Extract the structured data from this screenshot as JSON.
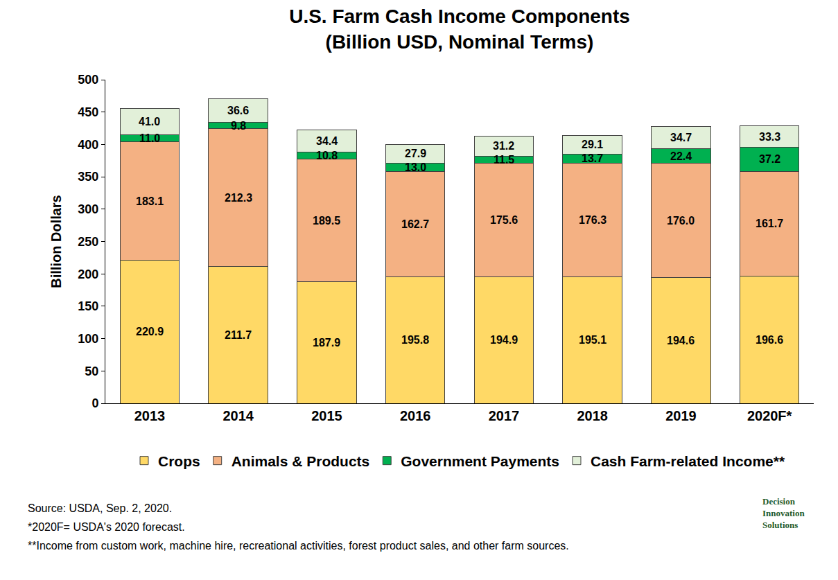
{
  "chart_data": {
    "type": "bar",
    "title": "U.S. Farm Cash Income Components",
    "subtitle": "(Billion USD, Nominal Terms)",
    "y_label": "Billion Dollars",
    "categories": [
      "2013",
      "2014",
      "2015",
      "2016",
      "2017",
      "2018",
      "2019",
      "2020F*"
    ],
    "series": [
      {
        "name": "Crops",
        "color": "#ffd966",
        "values": [
          220.9,
          211.7,
          187.9,
          195.8,
          194.9,
          195.1,
          194.6,
          196.6
        ],
        "value_labels": [
          "220.9",
          "211.7",
          "187.9",
          "195.8",
          "194.9",
          "195.1",
          "194.6",
          "196.6"
        ]
      },
      {
        "name": "Animals & Products",
        "color": "#f4b183",
        "values": [
          183.1,
          212.3,
          189.5,
          162.7,
          175.6,
          176.3,
          176.0,
          161.7
        ],
        "value_labels": [
          "183.1",
          "212.3",
          "189.5",
          "162.7",
          "175.6",
          "176.3",
          "176.0",
          "161.7"
        ]
      },
      {
        "name": "Government Payments",
        "color": "#00b050",
        "values": [
          11.0,
          9.8,
          10.8,
          13.0,
          11.5,
          13.7,
          22.4,
          37.2
        ],
        "value_labels": [
          "11.0",
          "9.8",
          "10.8",
          "13.0",
          "11.5",
          "13.7",
          "22.4",
          "37.2"
        ]
      },
      {
        "name": "Cash Farm-related Income**",
        "color": "#e2f0d9",
        "values": [
          41.0,
          36.6,
          34.4,
          27.9,
          31.2,
          29.1,
          34.7,
          33.3
        ],
        "value_labels": [
          "41.0",
          "36.6",
          "34.4",
          "27.9",
          "31.2",
          "29.1",
          "34.7",
          "33.3"
        ]
      }
    ],
    "ylim": [
      0,
      500
    ],
    "yticks": [
      0,
      50,
      100,
      150,
      200,
      250,
      300,
      350,
      400,
      450,
      500
    ],
    "grid": false,
    "stacked": true,
    "data_labels": true,
    "legend": "bottom",
    "annotations": [
      "Source: USDA, Sep. 2, 2020.",
      "*2020F= USDA's 2020 forecast.",
      "**Income from custom work, machine hire, recreational activities, forest product sales, and other farm sources."
    ],
    "logo": [
      "Decision",
      "Innovation",
      "Solutions"
    ]
  }
}
